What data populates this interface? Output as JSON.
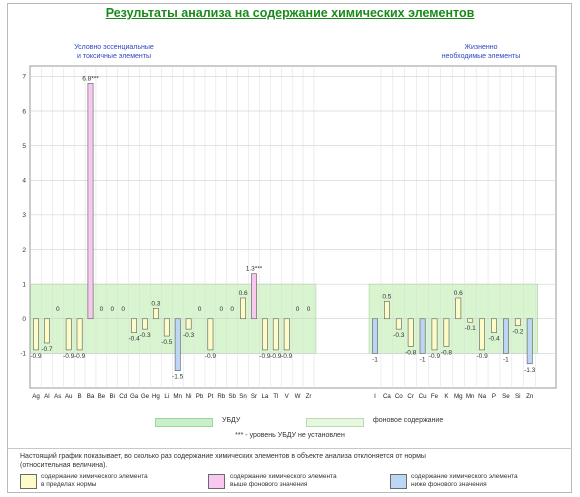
{
  "title": "Результаты анализа на содержание химических элементов",
  "group_left": {
    "line1": "Условно эссенциальные",
    "line2": "и токсичные элементы"
  },
  "group_right": {
    "line1": "Жизненно",
    "line2": "необходимые элементы"
  },
  "legend": {
    "ubdu": "УБДУ",
    "background": "фоновое содержание",
    "ubdu_note": "*** - уровень УБДУ не установлен"
  },
  "note": {
    "line1": "Настоящий график показывает, во сколько раз содержание химических элементов в объекте анализа отклоняется от нормы",
    "line2": "(относительная величина)."
  },
  "bottom_legend": [
    {
      "line1": "содержание химического элемента",
      "line2": "в пределах нормы",
      "color": "#fdfcc8"
    },
    {
      "line1": "содержание химического элемента",
      "line2": "выше фонового значения",
      "color": "#f8c8f0"
    },
    {
      "line1": "содержание химического элемента",
      "line2": "ниже фонового значения",
      "color": "#bcd6f4"
    }
  ],
  "colors": {
    "normal": "#fdfcc8",
    "above": "#f8c8f0",
    "below": "#bcd6f4",
    "background_band": "#d8f5d0",
    "ubdu_band": "#c8f0c8",
    "grid": "#c6c6c6",
    "bar_stroke": "#5a5a5a",
    "title": "#1a8a1a",
    "group_label": "#2f45c4"
  },
  "chart_data": {
    "type": "bar",
    "ylim": [
      -2,
      7.3
    ],
    "yticks": [
      -1,
      0,
      1,
      2,
      3,
      4,
      5,
      6,
      7
    ],
    "background_range": [
      -1,
      1
    ],
    "grid": true,
    "groups": [
      {
        "name": "Условно эссенциальные и токсичные элементы",
        "categories": [
          "Ag",
          "Al",
          "As",
          "Au",
          "B",
          "Ba",
          "Be",
          "Bi",
          "Cd",
          "Ga",
          "Ge",
          "Hg",
          "Li",
          "Mn",
          "Ni",
          "Pb",
          "Pt",
          "Rb",
          "Sb",
          "Sn",
          "Sr",
          "La",
          "Tl",
          "V",
          "W",
          "Zr"
        ],
        "values": [
          -0.9,
          -0.7,
          0,
          -0.9,
          -0.9,
          6.8,
          0,
          0,
          0,
          -0.4,
          -0.3,
          0.3,
          -0.5,
          -1.5,
          -0.3,
          0,
          -0.9,
          0,
          0,
          0.6,
          1.3,
          -0.9,
          -0.9,
          -0.9,
          0,
          0
        ],
        "labels": [
          "-0.9",
          "-0.7",
          "0",
          "-0.9",
          "-0.9",
          "6.8***",
          "0",
          "0",
          "0",
          "-0.4",
          "-0.3",
          "0.3",
          "-0.5",
          "-1.5",
          "-0.3",
          "0",
          "-0.9",
          "0",
          "0",
          "0.6",
          "1.3***",
          "-0.9",
          "-0.9",
          "-0.9",
          "0",
          "0"
        ],
        "status": [
          "normal",
          "normal",
          "none",
          "normal",
          "normal",
          "above",
          "none",
          "none",
          "none",
          "normal",
          "normal",
          "normal",
          "normal",
          "below",
          "normal",
          "none",
          "normal",
          "none",
          "none",
          "normal",
          "above",
          "normal",
          "normal",
          "normal",
          "none",
          "none"
        ]
      },
      {
        "name": "Жизненно необходимые элементы",
        "categories": [
          "I",
          "Ca",
          "Co",
          "Cr",
          "Cu",
          "Fe",
          "K",
          "Mg",
          "Mn",
          "Na",
          "P",
          "Se",
          "Si",
          "Zn"
        ],
        "values": [
          -1,
          0.5,
          -0.3,
          -0.8,
          -1,
          -0.9,
          -0.8,
          0.6,
          -0.1,
          -0.9,
          -0.4,
          -1,
          -0.2,
          -1.3
        ],
        "labels": [
          "-1",
          "0.5",
          "-0.3",
          "-0.8",
          "-1",
          "-0.9",
          "-0.8",
          "0.6",
          "-0.1",
          "-0.9",
          "-0.4",
          "-1",
          "-0.2",
          "-1.3"
        ],
        "status": [
          "below",
          "normal",
          "normal",
          "normal",
          "below",
          "normal",
          "normal",
          "normal",
          "normal",
          "normal",
          "normal",
          "below",
          "normal",
          "below"
        ]
      }
    ]
  }
}
